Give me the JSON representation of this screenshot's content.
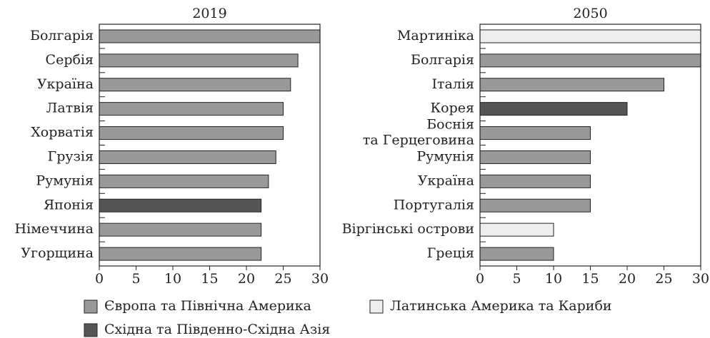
{
  "chart_data": [
    {
      "type": "bar",
      "orientation": "horizontal",
      "title": "2019",
      "categories": [
        "Болгарія",
        "Сербія",
        "Україна",
        "Латвія",
        "Хорватія",
        "Грузія",
        "Румунія",
        "Японія",
        "Німеччина",
        "Угорщина"
      ],
      "values": [
        30,
        27,
        26,
        25,
        25,
        24,
        23,
        22,
        22,
        22
      ],
      "colors": [
        "#999999",
        "#999999",
        "#999999",
        "#999999",
        "#999999",
        "#999999",
        "#999999",
        "#555555",
        "#999999",
        "#999999"
      ],
      "xlim": [
        0,
        30
      ],
      "xticks": [
        0,
        5,
        10,
        15,
        20,
        25,
        30
      ]
    },
    {
      "type": "bar",
      "orientation": "horizontal",
      "title": "2050",
      "categories": [
        "Мартиніка",
        "Болгарія",
        "Італія",
        "Корея",
        "Боснія\nта Герцеговина",
        "Румунія",
        "Україна",
        "Португалія",
        "Віргінські острови",
        "Греція"
      ],
      "values": [
        30,
        30,
        25,
        20,
        15,
        15,
        15,
        15,
        10,
        10
      ],
      "colors": [
        "#eeeeee",
        "#999999",
        "#999999",
        "#555555",
        "#999999",
        "#999999",
        "#999999",
        "#999999",
        "#eeeeee",
        "#999999"
      ],
      "xlim": [
        0,
        30
      ],
      "xticks": [
        0,
        5,
        10,
        15,
        20,
        25,
        30
      ]
    }
  ],
  "legend": [
    {
      "name": "Європа та Північна Америка",
      "color": "#999999"
    },
    {
      "name": "Латинська Америка та Кариби",
      "color": "#eeeeee"
    },
    {
      "name": "Східна та Південно-Східна Азія",
      "color": "#555555"
    }
  ]
}
